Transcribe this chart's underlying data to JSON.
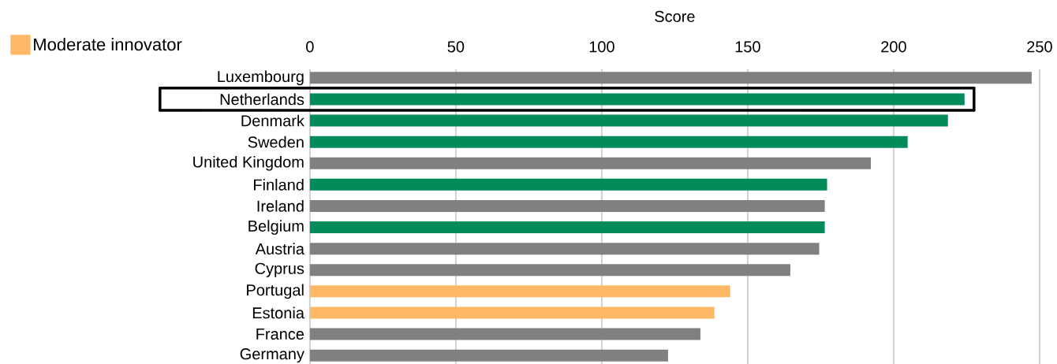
{
  "chart_data": {
    "type": "bar",
    "orientation": "horizontal",
    "xlabel": "Score",
    "categories": [
      "Luxembourg",
      "Netherlands",
      "Denmark",
      "Sweden",
      "United Kingdom",
      "Finland",
      "Ireland",
      "Belgium",
      "Austria",
      "Cyprus",
      "Portugal",
      "Estonia",
      "France",
      "Germany"
    ],
    "series": [
      {
        "color": "#808080",
        "values": [
          247.3,
          null,
          null,
          null,
          192.2,
          null,
          176.4,
          null,
          174.5,
          164.6,
          null,
          null,
          133.8,
          122.7
        ]
      },
      {
        "color": "#038c5a",
        "values": [
          null,
          224.3,
          218.6,
          204.8,
          null,
          177.2,
          null,
          176.4,
          null,
          null,
          null,
          null,
          null,
          null
        ]
      },
      {
        "name": "Moderate innovator",
        "color": "#ffb866",
        "values": [
          null,
          null,
          null,
          null,
          null,
          null,
          null,
          null,
          null,
          null,
          144.0,
          138.6,
          null,
          null
        ]
      }
    ],
    "xlim": [
      0,
      250
    ],
    "xticks": [
      0,
      50,
      100,
      150,
      200,
      250
    ],
    "grid": "x",
    "legend": "top left"
  }
}
